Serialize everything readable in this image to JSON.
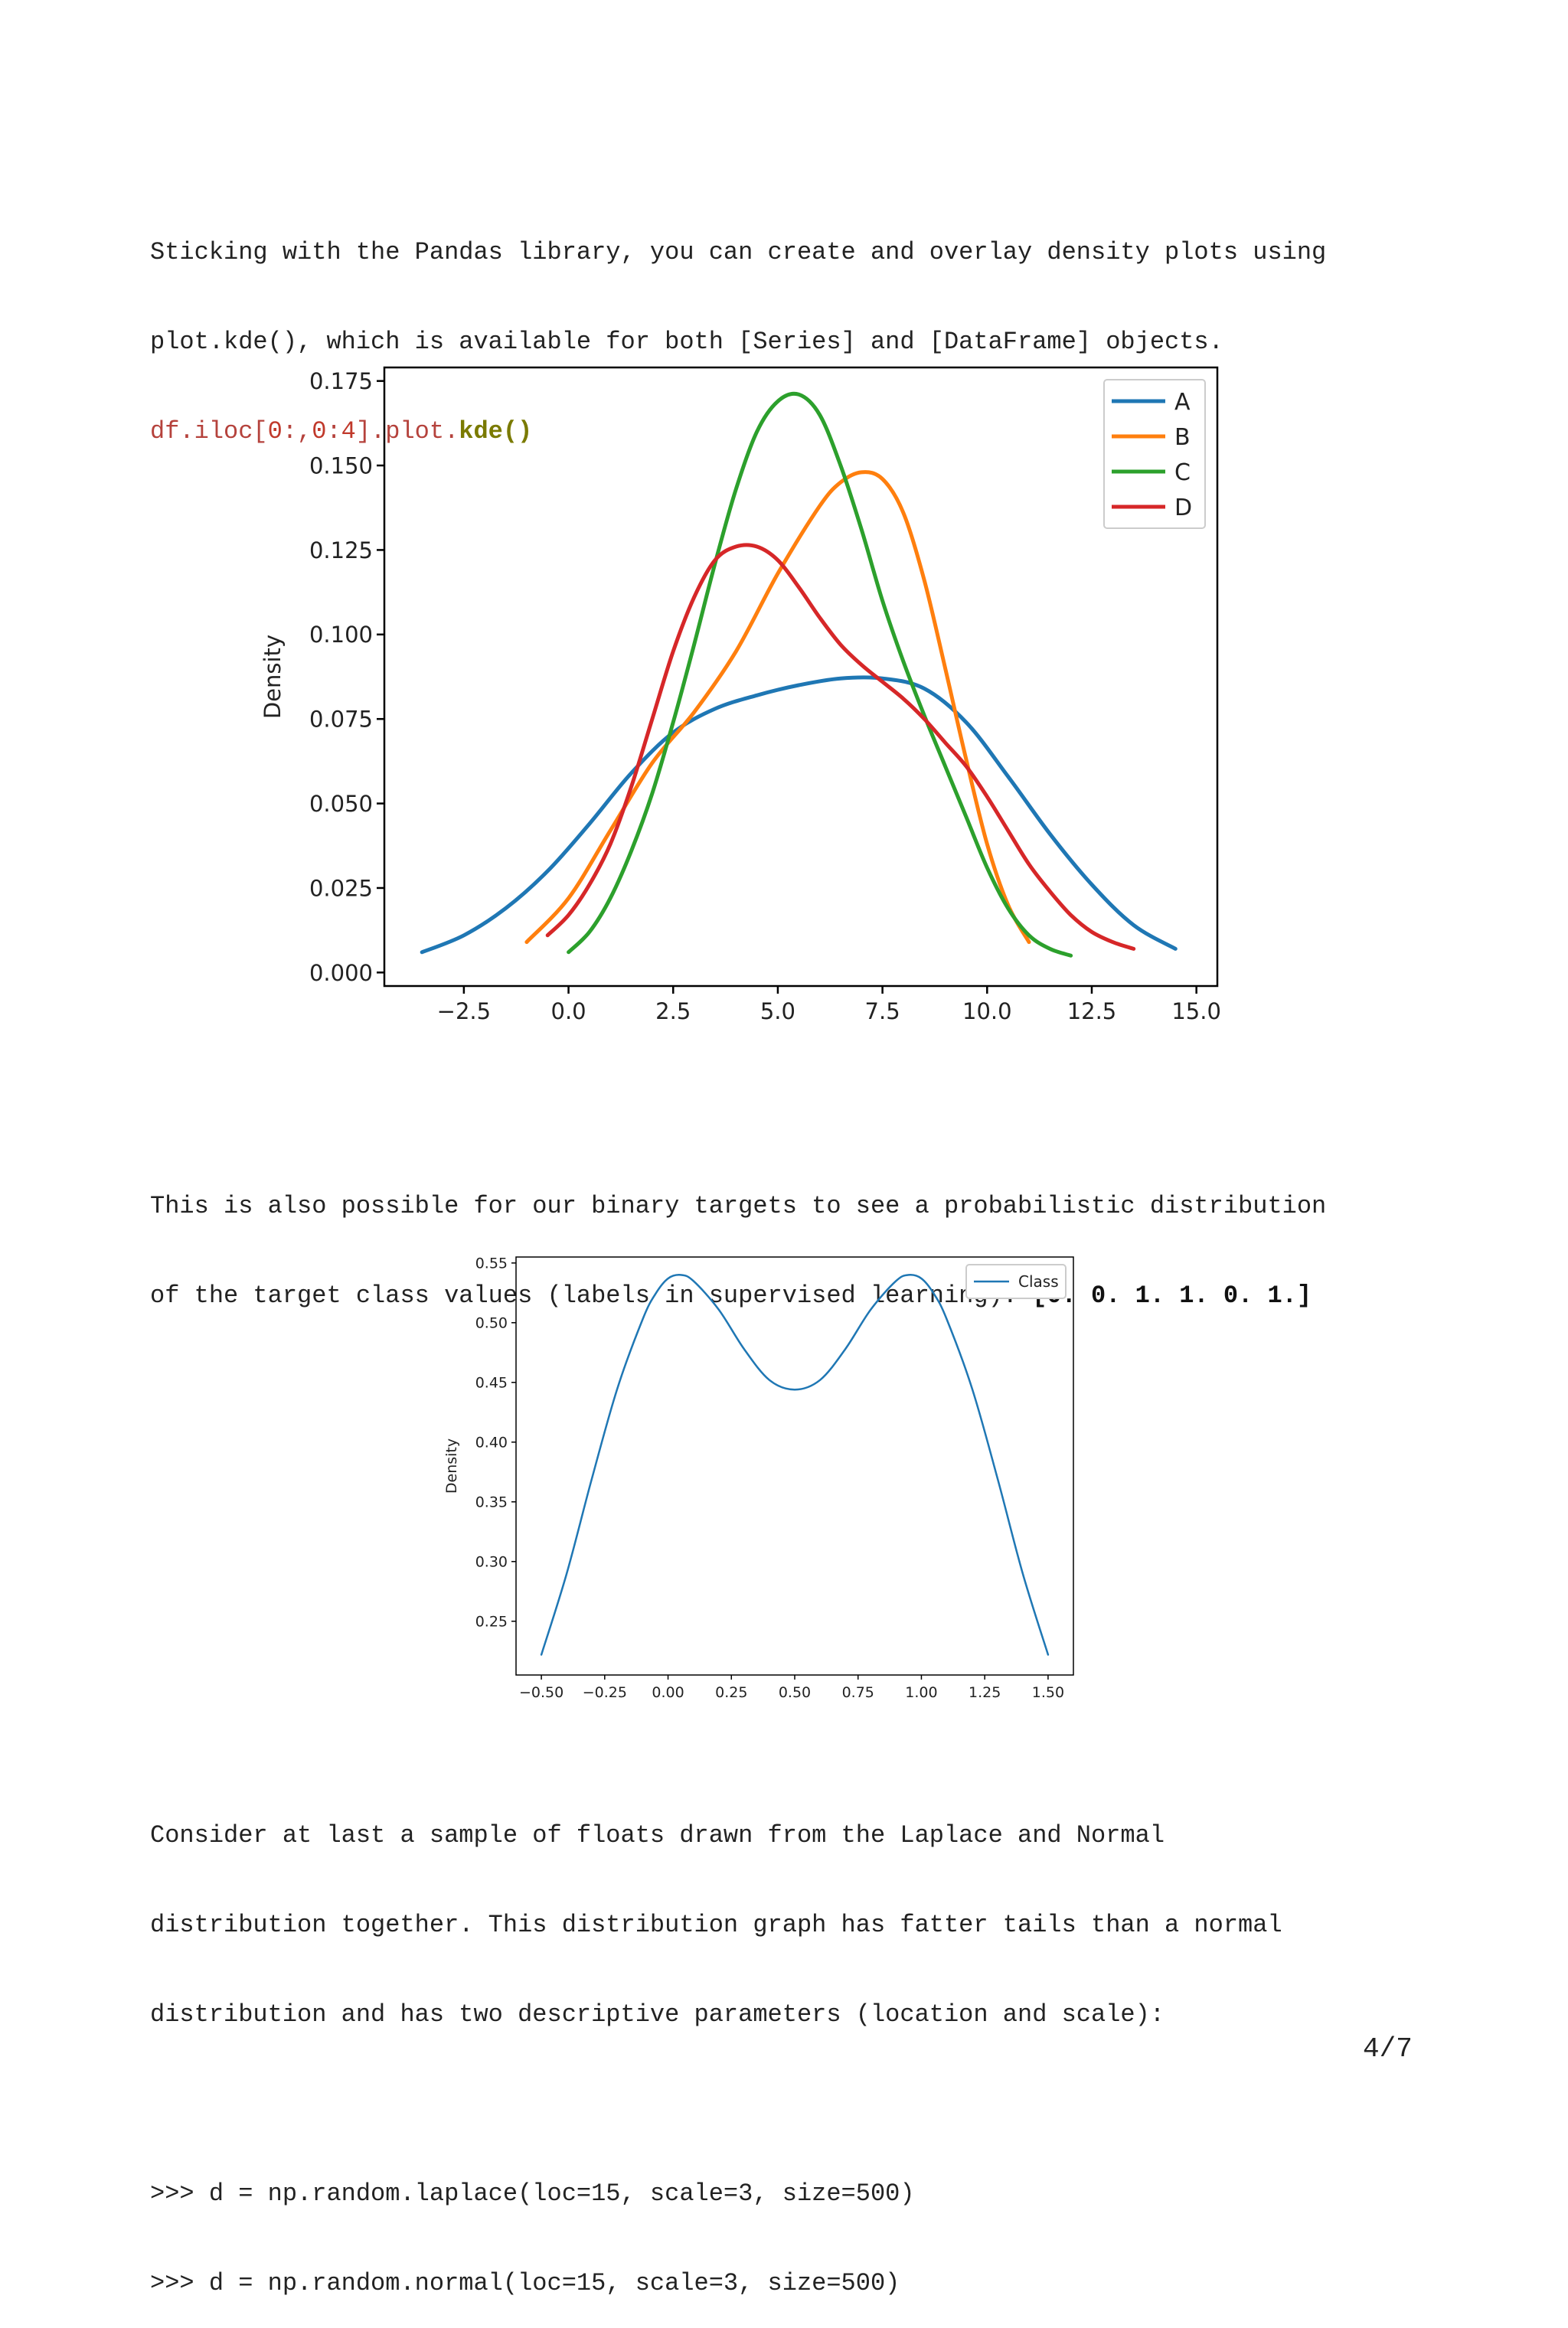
{
  "paragraph1": {
    "line1": "Sticking with the Pandas library, you can create and overlay density plots using",
    "line2": "plot.kde(), which is available for both [Series] and [DataFrame] objects.",
    "code_a": "df.iloc[",
    "code_b": "0",
    "code_c": ":,",
    "code_d": "0",
    "code_e": ":",
    "code_f": "4",
    "code_g": "].plot.",
    "code_h": "kde()"
  },
  "paragraph2": {
    "line1": "This is also possible for our binary targets to see a probabilistic distribution",
    "line2_text": "of the target class values (labels in supervised learning): ",
    "line2_bold": "[0. 0. 1. 1. 0. 1.]"
  },
  "paragraph3": {
    "line1": "Consider at last a sample of floats drawn from the Laplace and Normal",
    "line2": "distribution together. This distribution graph has fatter tails than a normal",
    "line3": "distribution and has two descriptive parameters (location and scale):",
    "code1": ">>> d = np.random.laplace(loc=15, scale=3, size=500)",
    "code2": ">>> d = np.random.normal(loc=15, scale=3, size=500)"
  },
  "page_number": "4/7",
  "chart_data": [
    {
      "type": "line",
      "ylabel": "Density",
      "xlim": [
        -4.4,
        15.5
      ],
      "ylim": [
        -0.004,
        0.179
      ],
      "xticks": [
        -2.5,
        0.0,
        2.5,
        5.0,
        7.5,
        10.0,
        12.5,
        15.0
      ],
      "xtick_labels": [
        "−2.5",
        "0.0",
        "2.5",
        "5.0",
        "7.5",
        "10.0",
        "12.5",
        "15.0"
      ],
      "yticks": [
        0.0,
        0.025,
        0.05,
        0.075,
        0.1,
        0.125,
        0.15,
        0.175
      ],
      "ytick_labels": [
        "0.000",
        "0.025",
        "0.050",
        "0.075",
        "0.100",
        "0.125",
        "0.150",
        "0.175"
      ],
      "legend_position": "top-right",
      "series": [
        {
          "name": "A",
          "color": "#1f77b4",
          "x": [
            -3.5,
            -2.5,
            -1.5,
            -0.5,
            0.5,
            1.5,
            2.5,
            3.5,
            4.5,
            5.5,
            6.5,
            7.5,
            8.5,
            9.5,
            10.5,
            11.5,
            12.5,
            13.5,
            14.5
          ],
          "y": [
            0.006,
            0.011,
            0.019,
            0.03,
            0.044,
            0.059,
            0.071,
            0.078,
            0.082,
            0.085,
            0.087,
            0.087,
            0.084,
            0.074,
            0.058,
            0.041,
            0.026,
            0.014,
            0.007
          ]
        },
        {
          "name": "B",
          "color": "#ff7f0e",
          "x": [
            -1.0,
            0.0,
            1.0,
            2.0,
            3.0,
            4.0,
            5.0,
            6.0,
            6.5,
            7.0,
            7.5,
            8.0,
            8.5,
            9.0,
            9.5,
            10.0,
            10.5,
            11.0
          ],
          "y": [
            0.009,
            0.022,
            0.042,
            0.062,
            0.077,
            0.095,
            0.118,
            0.138,
            0.145,
            0.148,
            0.146,
            0.136,
            0.116,
            0.09,
            0.063,
            0.038,
            0.02,
            0.009
          ]
        },
        {
          "name": "C",
          "color": "#2ca02c",
          "x": [
            0.0,
            0.5,
            1.0,
            1.5,
            2.0,
            2.5,
            3.0,
            3.5,
            4.0,
            4.5,
            5.0,
            5.5,
            6.0,
            6.5,
            7.0,
            7.5,
            8.0,
            8.5,
            9.0,
            9.5,
            10.0,
            10.5,
            11.0,
            11.5,
            12.0
          ],
          "y": [
            0.006,
            0.012,
            0.022,
            0.036,
            0.053,
            0.074,
            0.097,
            0.121,
            0.143,
            0.16,
            0.169,
            0.171,
            0.165,
            0.15,
            0.131,
            0.11,
            0.092,
            0.076,
            0.061,
            0.046,
            0.031,
            0.019,
            0.011,
            0.007,
            0.005
          ]
        },
        {
          "name": "D",
          "color": "#d62728",
          "x": [
            -0.5,
            0.0,
            0.5,
            1.0,
            1.5,
            2.0,
            2.5,
            3.0,
            3.5,
            4.0,
            4.5,
            5.0,
            5.5,
            6.0,
            6.5,
            7.0,
            7.5,
            8.0,
            8.5,
            9.0,
            9.5,
            10.0,
            10.5,
            11.0,
            11.5,
            12.0,
            12.5,
            13.0,
            13.5
          ],
          "y": [
            0.011,
            0.017,
            0.026,
            0.038,
            0.055,
            0.075,
            0.095,
            0.111,
            0.122,
            0.126,
            0.126,
            0.122,
            0.114,
            0.105,
            0.097,
            0.091,
            0.086,
            0.081,
            0.075,
            0.068,
            0.061,
            0.052,
            0.042,
            0.032,
            0.024,
            0.017,
            0.012,
            0.009,
            0.007
          ]
        }
      ]
    },
    {
      "type": "line",
      "ylabel": "Density",
      "xlim": [
        -0.6,
        1.6
      ],
      "ylim": [
        0.205,
        0.555
      ],
      "xticks": [
        -0.5,
        -0.25,
        0.0,
        0.25,
        0.5,
        0.75,
        1.0,
        1.25,
        1.5
      ],
      "xtick_labels": [
        "−0.50",
        "−0.25",
        "0.00",
        "0.25",
        "0.50",
        "0.75",
        "1.00",
        "1.25",
        "1.50"
      ],
      "yticks": [
        0.25,
        0.3,
        0.35,
        0.4,
        0.45,
        0.5,
        0.55
      ],
      "ytick_labels": [
        "0.25",
        "0.30",
        "0.35",
        "0.40",
        "0.45",
        "0.50",
        "0.55"
      ],
      "legend_position": "top-right",
      "series": [
        {
          "name": "Class",
          "color": "#1f77b4",
          "x": [
            -0.5,
            -0.4,
            -0.3,
            -0.2,
            -0.1,
            -0.05,
            0.0,
            0.05,
            0.1,
            0.2,
            0.3,
            0.4,
            0.5,
            0.6,
            0.7,
            0.8,
            0.9,
            0.95,
            1.0,
            1.05,
            1.1,
            1.2,
            1.3,
            1.4,
            1.5
          ],
          "y": [
            0.222,
            0.29,
            0.37,
            0.445,
            0.503,
            0.524,
            0.537,
            0.54,
            0.535,
            0.511,
            0.478,
            0.452,
            0.444,
            0.452,
            0.478,
            0.511,
            0.535,
            0.54,
            0.537,
            0.524,
            0.503,
            0.445,
            0.37,
            0.29,
            0.222
          ]
        }
      ]
    }
  ]
}
